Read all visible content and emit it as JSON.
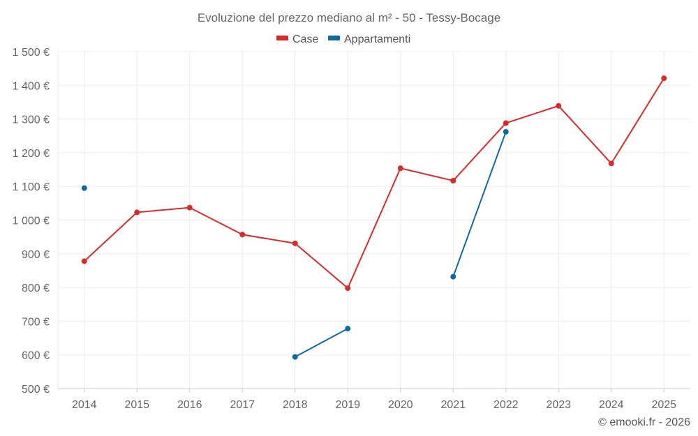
{
  "chart_data": {
    "type": "line",
    "title": "Evoluzione del prezzo mediano al m² - 50 - Tessy-Bocage",
    "categories": [
      "2014",
      "2015",
      "2016",
      "2017",
      "2018",
      "2019",
      "2020",
      "2021",
      "2022",
      "2023",
      "2024",
      "2025"
    ],
    "series": [
      {
        "name": "Case",
        "color": "#d62b2b",
        "values": [
          878,
          1023,
          1037,
          957,
          931,
          798,
          1154,
          1117,
          1288,
          1339,
          1168,
          1421
        ]
      },
      {
        "name": "Appartamenti",
        "color": "#0f6aa1",
        "values": [
          1095,
          null,
          null,
          null,
          594,
          678,
          null,
          832,
          1262,
          null,
          null,
          null
        ]
      }
    ],
    "ylim": [
      500,
      1500
    ],
    "yticks": [
      500,
      600,
      700,
      800,
      900,
      1000,
      1100,
      1200,
      1300,
      1400,
      1500
    ],
    "ytick_labels": [
      "500 €",
      "600 €",
      "700 €",
      "800 €",
      "900 €",
      "1 000 €",
      "1 100 €",
      "1 200 €",
      "1 300 €",
      "1 400 €",
      "1 500 €"
    ],
    "xlabel": "",
    "ylabel": "",
    "grid": true,
    "legend_position": "top-center"
  },
  "credit": "© emooki.fr - 2026"
}
